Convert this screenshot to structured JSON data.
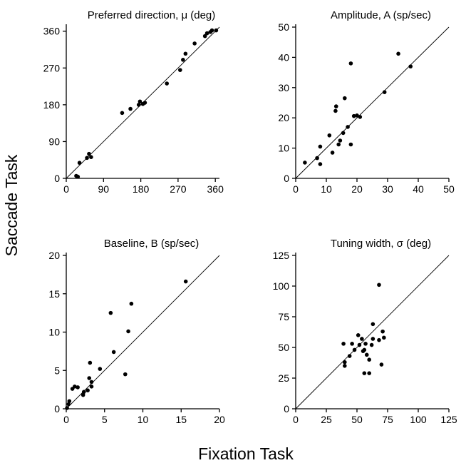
{
  "figure": {
    "xlabel": "Fixation Task",
    "ylabel": "Saccade Task"
  },
  "chart_data": [
    {
      "type": "scatter",
      "title": "Preferred direction, μ (deg)",
      "xlim": [
        0,
        370
      ],
      "ylim": [
        0,
        370
      ],
      "xticks": [
        0,
        90,
        180,
        270,
        360
      ],
      "yticks": [
        0,
        90,
        180,
        270,
        360
      ],
      "reference_line": "unity",
      "points": [
        [
          24,
          6
        ],
        [
          28,
          4
        ],
        [
          32,
          38
        ],
        [
          50,
          50
        ],
        [
          55,
          60
        ],
        [
          60,
          52
        ],
        [
          135,
          160
        ],
        [
          155,
          170
        ],
        [
          175,
          180
        ],
        [
          178,
          188
        ],
        [
          185,
          182
        ],
        [
          190,
          185
        ],
        [
          243,
          232
        ],
        [
          275,
          265
        ],
        [
          282,
          290
        ],
        [
          288,
          305
        ],
        [
          310,
          330
        ],
        [
          335,
          348
        ],
        [
          340,
          355
        ],
        [
          348,
          358
        ],
        [
          352,
          362
        ],
        [
          362,
          362
        ]
      ]
    },
    {
      "type": "scatter",
      "title": "Amplitude, A (sp/sec)",
      "xlim": [
        0,
        50
      ],
      "ylim": [
        0,
        50
      ],
      "xticks": [
        0,
        10,
        20,
        30,
        40,
        50
      ],
      "yticks": [
        0,
        10,
        20,
        30,
        40,
        50
      ],
      "reference_line": "unity",
      "points": [
        [
          3,
          5.2
        ],
        [
          7,
          6.7
        ],
        [
          8,
          4.7
        ],
        [
          8,
          10.5
        ],
        [
          11,
          14.2
        ],
        [
          12,
          8.5
        ],
        [
          13,
          22.3
        ],
        [
          13.2,
          23.8
        ],
        [
          14,
          11.2
        ],
        [
          14.5,
          12.5
        ],
        [
          15.5,
          15
        ],
        [
          16,
          26.5
        ],
        [
          17,
          17
        ],
        [
          18,
          38
        ],
        [
          18,
          11.2
        ],
        [
          19,
          20.6
        ],
        [
          20,
          20.8
        ],
        [
          21,
          20.3
        ],
        [
          29,
          28.5
        ],
        [
          33.5,
          41.2
        ],
        [
          37.5,
          37
        ]
      ]
    },
    {
      "type": "scatter",
      "title": "Baseline, B (sp/sec)",
      "xlim": [
        0,
        20
      ],
      "ylim": [
        0,
        20
      ],
      "xticks": [
        0,
        5,
        10,
        15,
        20
      ],
      "yticks": [
        0,
        5,
        10,
        15,
        20
      ],
      "reference_line": "unity",
      "points": [
        [
          0.1,
          0.1
        ],
        [
          0.3,
          0.6
        ],
        [
          0.4,
          1.0
        ],
        [
          0.8,
          2.6
        ],
        [
          1.1,
          2.9
        ],
        [
          1.5,
          2.8
        ],
        [
          2.2,
          1.8
        ],
        [
          2.3,
          2.2
        ],
        [
          2.8,
          2.4
        ],
        [
          3.0,
          4.0
        ],
        [
          3.1,
          6.0
        ],
        [
          3.3,
          2.9
        ],
        [
          3.3,
          3.5
        ],
        [
          4.4,
          5.2
        ],
        [
          5.8,
          12.5
        ],
        [
          6.2,
          7.4
        ],
        [
          7.7,
          4.5
        ],
        [
          8.1,
          10.1
        ],
        [
          8.5,
          13.7
        ],
        [
          15.6,
          16.6
        ]
      ]
    },
    {
      "type": "scatter",
      "title": "Tuning width, σ (deg)",
      "xlim": [
        0,
        125
      ],
      "ylim": [
        0,
        125
      ],
      "xticks": [
        0,
        25,
        50,
        75,
        100,
        125
      ],
      "yticks": [
        0,
        25,
        50,
        75,
        100,
        125
      ],
      "reference_line": "unity",
      "points": [
        [
          39,
          53
        ],
        [
          40,
          38
        ],
        [
          40,
          35
        ],
        [
          44,
          43
        ],
        [
          46,
          53
        ],
        [
          48,
          48
        ],
        [
          51,
          60
        ],
        [
          52,
          52
        ],
        [
          54,
          57
        ],
        [
          55,
          47
        ],
        [
          56,
          48
        ],
        [
          56,
          29
        ],
        [
          57,
          53
        ],
        [
          58,
          44
        ],
        [
          60,
          40
        ],
        [
          60,
          29
        ],
        [
          62,
          52
        ],
        [
          63,
          57
        ],
        [
          63,
          69
        ],
        [
          68,
          56
        ],
        [
          68,
          101
        ],
        [
          70,
          36
        ],
        [
          71,
          63
        ],
        [
          72,
          58
        ]
      ]
    }
  ]
}
